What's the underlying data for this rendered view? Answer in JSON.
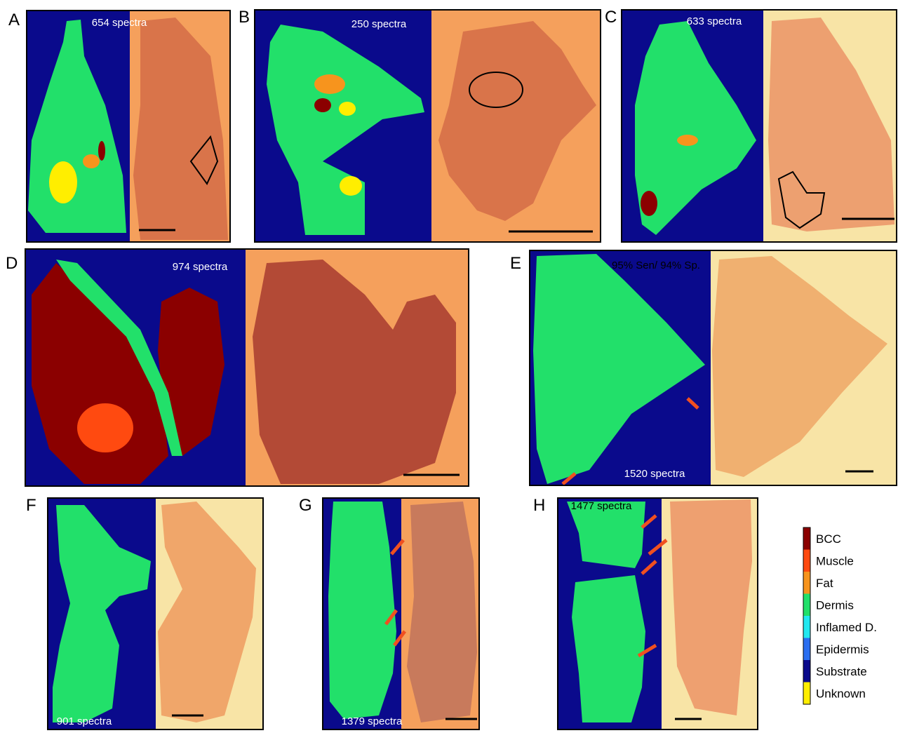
{
  "panels": [
    {
      "label": "A",
      "spectra": "654 spectra"
    },
    {
      "label": "B",
      "spectra": "250 spectra"
    },
    {
      "label": "C",
      "spectra": "633 spectra"
    },
    {
      "label": "D",
      "spectra": "974 spectra"
    },
    {
      "label": "E",
      "spectra": "1520 spectra",
      "note": "95% Sen/ 94% Sp."
    },
    {
      "label": "F",
      "spectra": "901 spectra"
    },
    {
      "label": "G",
      "spectra": "1379 spectra"
    },
    {
      "label": "H",
      "spectra": "1477 spectra"
    }
  ],
  "legend": [
    {
      "label": "BCC",
      "color": "#8b0000"
    },
    {
      "label": "Muscle",
      "color": "#ff4a10"
    },
    {
      "label": "Fat",
      "color": "#f7941d"
    },
    {
      "label": "Dermis",
      "color": "#22e06a"
    },
    {
      "label": "Inflamed D.",
      "color": "#22e8f0"
    },
    {
      "label": "Epidermis",
      "color": "#2a6ef0"
    },
    {
      "label": "Substrate",
      "color": "#0a0a8c"
    },
    {
      "label": "Unknown",
      "color": "#ffee00"
    }
  ]
}
